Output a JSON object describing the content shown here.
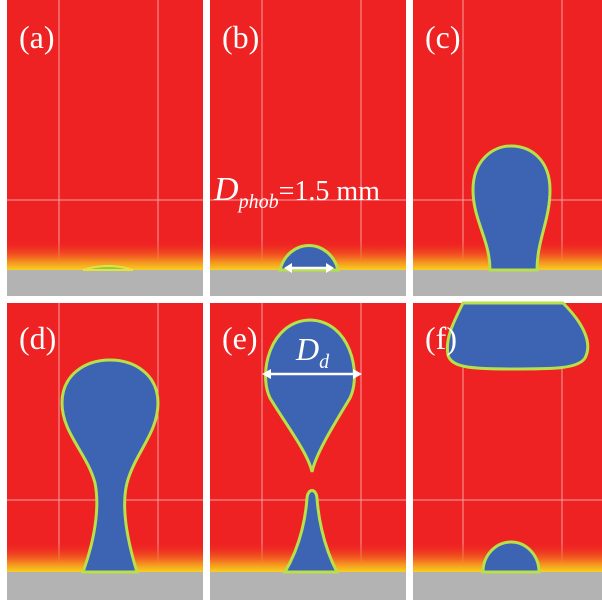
{
  "panels": [
    {
      "label": "(a)"
    },
    {
      "label": "(b)"
    },
    {
      "label": "(c)"
    },
    {
      "label": "(d)"
    },
    {
      "label": "(e)"
    },
    {
      "label": "(f)"
    }
  ],
  "annotations": {
    "phob": {
      "symbol": "D",
      "subscript": "phob",
      "value": "=1.5 mm"
    },
    "dd": {
      "symbol": "D",
      "subscript": "d"
    }
  }
}
